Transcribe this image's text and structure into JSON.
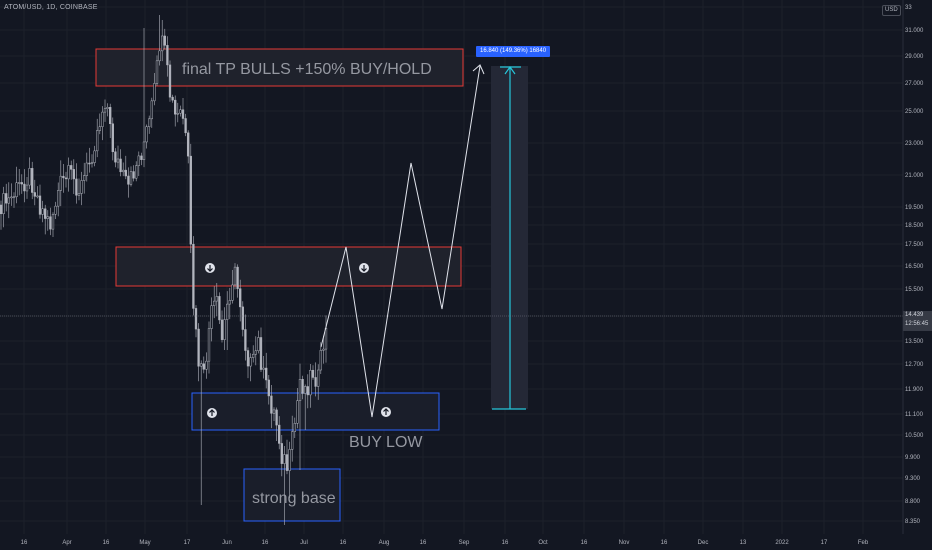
{
  "header": {
    "symbol_title": "ATOM/USD, 1D, COINBASE",
    "currency_badge": "USD"
  },
  "price_tag": {
    "price": "14.439",
    "countdown": "12:56:45"
  },
  "annotations": {
    "tp_text": "final TP BULLS +150% BUY/HOLD",
    "buy_low_text": "BUY LOW",
    "strong_base_text": "strong base",
    "measure_label": "16.840 (149.36%) 16840"
  },
  "colors": {
    "background": "#131722",
    "red_zone": "#e53935",
    "blue_zone": "#2962ff",
    "measure": "#26c6da",
    "candles": "#b2b5be",
    "projection": "#e0e3eb"
  },
  "chart_data": {
    "type": "candlestick",
    "scale": "log",
    "y_ticks": [
      "8.350",
      "8.800",
      "9.300",
      "9.900",
      "10.500",
      "11.100",
      "11.900",
      "12.700",
      "13.500",
      "14.500",
      "15.500",
      "16.500",
      "17.500",
      "18.500",
      "19.500",
      "21.000",
      "23.000",
      "25.000",
      "27.000",
      "29.000",
      "31.000",
      "33"
    ],
    "x_ticks": [
      "16",
      "Apr",
      "16",
      "May",
      "17",
      "Jun",
      "16",
      "Jul",
      "16",
      "Aug",
      "16",
      "Sep",
      "16",
      "Oct",
      "16",
      "Nov",
      "16",
      "Dec",
      "13",
      "2022",
      "17",
      "Feb"
    ],
    "current_price": 14.439,
    "zones": [
      {
        "name": "final TP BULLS +150% BUY/HOLD",
        "low": 26.5,
        "high": 30.3
      },
      {
        "low": 15.6,
        "high": 17.6
      },
      {
        "name": "BUY LOW",
        "low": 10.7,
        "high": 11.75
      },
      {
        "name": "strong base",
        "low": 8.6,
        "high": 9.65
      }
    ],
    "projection_path": [
      12.7,
      17.4,
      11.1,
      21.8,
      15.1,
      28.2
    ],
    "measure": {
      "from": 11.3,
      "to": 28.14,
      "change": 16.84,
      "percent": 149.36
    }
  }
}
